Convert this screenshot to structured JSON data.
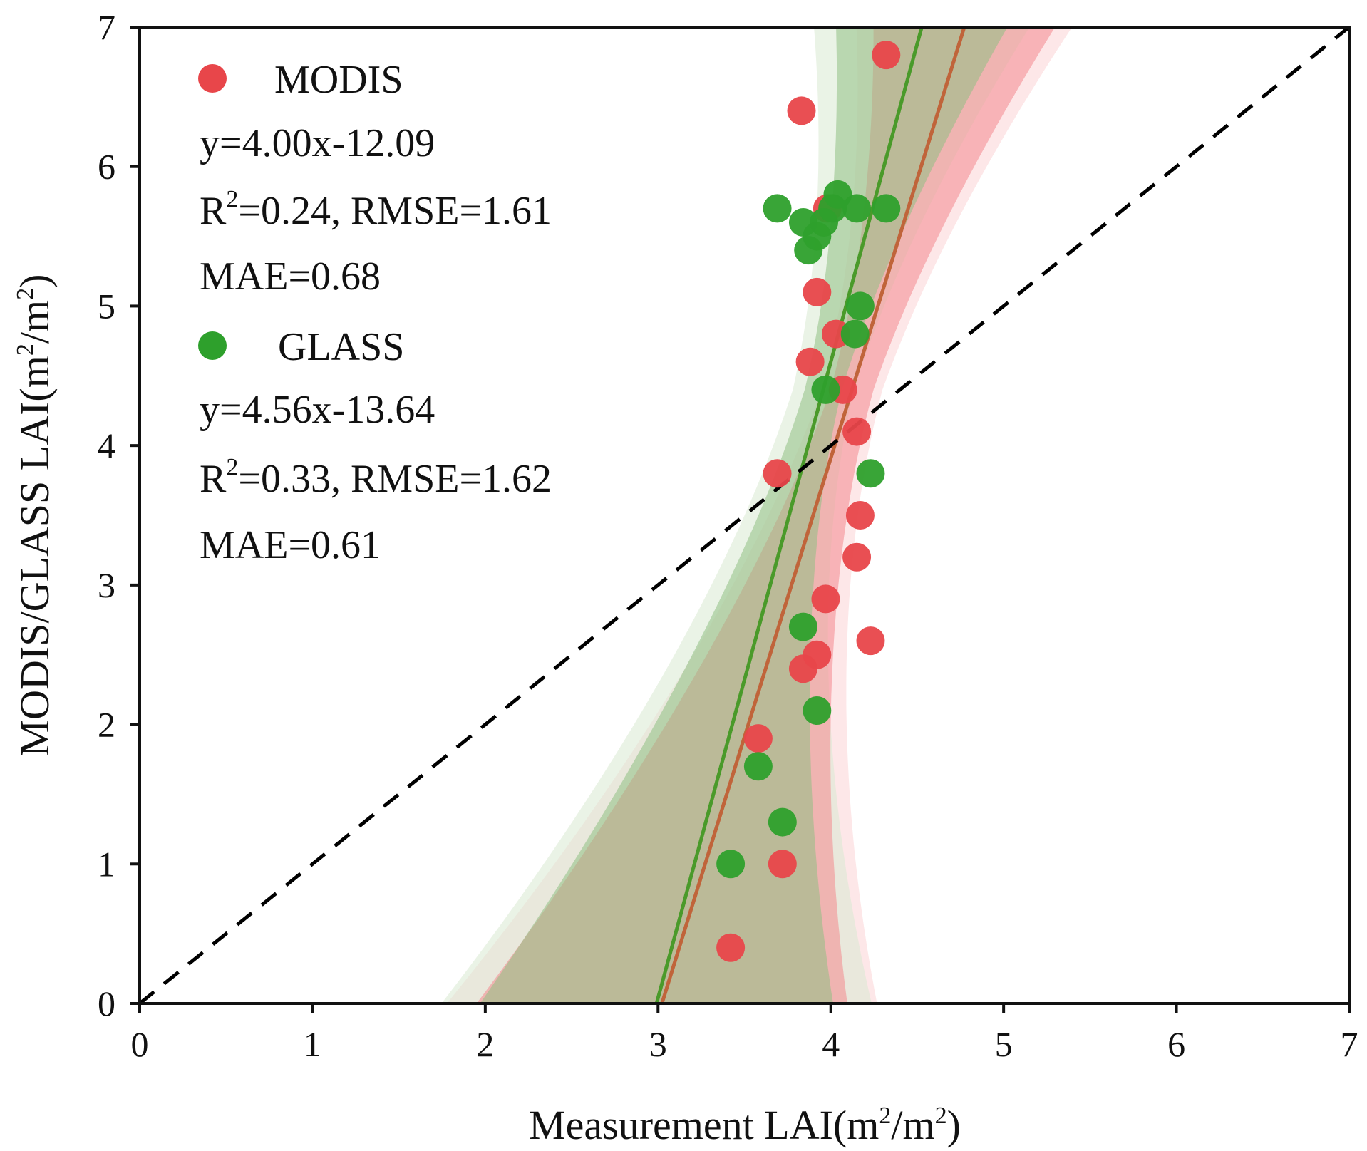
{
  "chart_data": {
    "type": "scatter",
    "title": "",
    "xlabel": "Measurement LAI(m2/m2)",
    "ylabel": "MODIS/GLASS LAI(m2/m2)",
    "xlim": [
      0,
      7
    ],
    "ylim": [
      0,
      7
    ],
    "xticks": [
      "0",
      "1",
      "2",
      "3",
      "4",
      "5",
      "6",
      "7"
    ],
    "yticks": [
      "0",
      "1",
      "2",
      "3",
      "4",
      "5",
      "6",
      "7"
    ],
    "grid": false,
    "legend_position": "top-left",
    "reference_line": {
      "style": "dashed",
      "color": "#000000",
      "x": [
        0,
        7
      ],
      "y": [
        0,
        7
      ]
    },
    "series": [
      {
        "name": "MODIS",
        "color": "#e8464a",
        "line_color": "#c0643a",
        "band_inner_color": "#f4888e",
        "band_outer_color": "#fbd3d5",
        "fit": {
          "slope": 4.0,
          "intercept": -12.09
        },
        "stats": {
          "equation": "y=4.00x-12.09",
          "r2_prefix": "R",
          "r2_sup": "2",
          "r2_rest": "=0.24, RMSE=1.61",
          "mae": "MAE=0.68"
        },
        "points": [
          {
            "x": 4.32,
            "y": 6.8
          },
          {
            "x": 3.83,
            "y": 6.4
          },
          {
            "x": 3.98,
            "y": 5.7
          },
          {
            "x": 3.92,
            "y": 5.1
          },
          {
            "x": 4.03,
            "y": 4.8
          },
          {
            "x": 3.88,
            "y": 4.6
          },
          {
            "x": 4.07,
            "y": 4.4
          },
          {
            "x": 4.15,
            "y": 4.1
          },
          {
            "x": 3.69,
            "y": 3.8
          },
          {
            "x": 4.17,
            "y": 3.5
          },
          {
            "x": 4.15,
            "y": 3.2
          },
          {
            "x": 3.97,
            "y": 2.9
          },
          {
            "x": 4.23,
            "y": 2.6
          },
          {
            "x": 3.92,
            "y": 2.5
          },
          {
            "x": 3.84,
            "y": 2.4
          },
          {
            "x": 3.58,
            "y": 1.9
          },
          {
            "x": 3.72,
            "y": 1.0
          },
          {
            "x": 3.42,
            "y": 0.4
          }
        ]
      },
      {
        "name": "GLASS",
        "color": "#2ea02c",
        "line_color": "#4a9a2a",
        "band_inner_color": "#8fc083",
        "band_outer_color": "#d9ead2",
        "fit": {
          "slope": 4.56,
          "intercept": -13.64
        },
        "stats": {
          "equation": "y=4.56x-13.64",
          "r2_prefix": "R",
          "r2_sup": "2",
          "r2_rest": "=0.33, RMSE=1.62",
          "mae": "MAE=0.61"
        },
        "points": [
          {
            "x": 3.69,
            "y": 5.7
          },
          {
            "x": 4.04,
            "y": 5.8
          },
          {
            "x": 4.15,
            "y": 5.7
          },
          {
            "x": 4.32,
            "y": 5.7
          },
          {
            "x": 4.01,
            "y": 5.7
          },
          {
            "x": 3.84,
            "y": 5.6
          },
          {
            "x": 3.96,
            "y": 5.6
          },
          {
            "x": 3.92,
            "y": 5.5
          },
          {
            "x": 3.87,
            "y": 5.4
          },
          {
            "x": 4.17,
            "y": 5.0
          },
          {
            "x": 4.14,
            "y": 4.8
          },
          {
            "x": 3.97,
            "y": 4.4
          },
          {
            "x": 4.23,
            "y": 3.8
          },
          {
            "x": 3.84,
            "y": 2.7
          },
          {
            "x": 3.92,
            "y": 2.1
          },
          {
            "x": 3.58,
            "y": 1.7
          },
          {
            "x": 3.72,
            "y": 1.3
          },
          {
            "x": 3.42,
            "y": 1.0
          }
        ]
      }
    ]
  }
}
